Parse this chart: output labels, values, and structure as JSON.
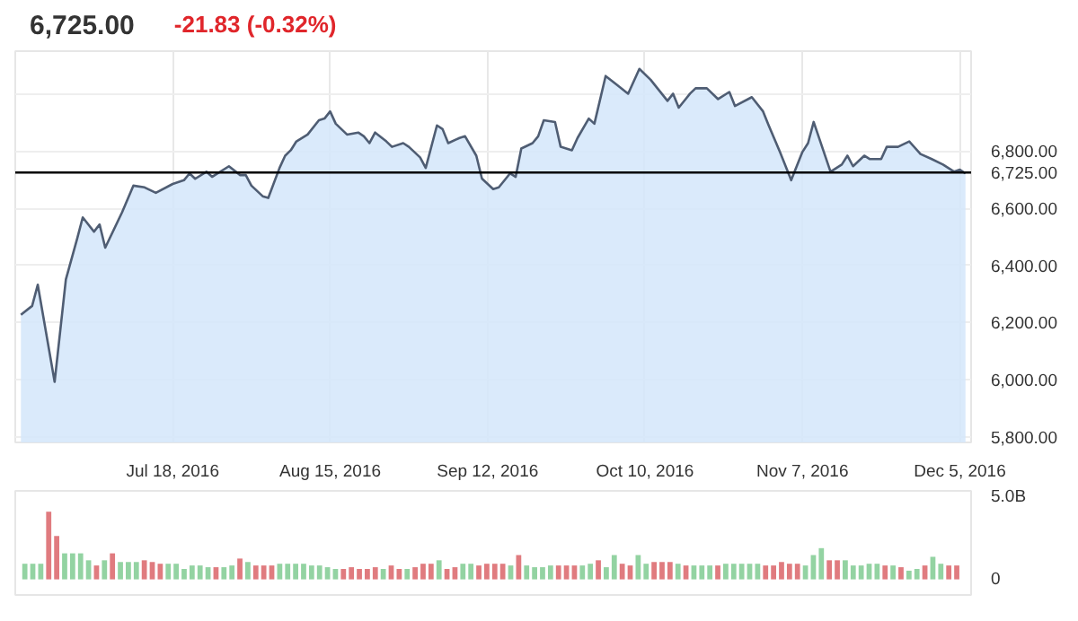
{
  "chart_data": [
    {
      "type": "area",
      "title": "6,725.00",
      "subtitle": "-21.83 (-0.32%)",
      "x": [
        "2016-06-21",
        "2016-06-23",
        "2016-06-24",
        "2016-06-27",
        "2016-06-29",
        "2016-07-01",
        "2016-07-02",
        "2016-07-04",
        "2016-07-05",
        "2016-07-06",
        "2016-07-09",
        "2016-07-11",
        "2016-07-13",
        "2016-07-15",
        "2016-07-18",
        "2016-07-20",
        "2016-07-21",
        "2016-07-22",
        "2016-07-24",
        "2016-07-25",
        "2016-07-26",
        "2016-07-28",
        "2016-07-30",
        "2016-07-31",
        "2016-08-01",
        "2016-08-03",
        "2016-08-04",
        "2016-08-06",
        "2016-08-07",
        "2016-08-08",
        "2016-08-09",
        "2016-08-11",
        "2016-08-13",
        "2016-08-14",
        "2016-08-15",
        "2016-08-16",
        "2016-08-18",
        "2016-08-20",
        "2016-08-21",
        "2016-08-22",
        "2016-08-23",
        "2016-08-25",
        "2016-08-26",
        "2016-08-28",
        "2016-08-29",
        "2016-08-31",
        "2016-09-01",
        "2016-09-03",
        "2016-09-04",
        "2016-09-05",
        "2016-09-07",
        "2016-09-08",
        "2016-09-10",
        "2016-09-11",
        "2016-09-13",
        "2016-09-14",
        "2016-09-16",
        "2016-09-17",
        "2016-09-18",
        "2016-09-20",
        "2016-09-21",
        "2016-09-22",
        "2016-09-24",
        "2016-09-25",
        "2016-09-27",
        "2016-09-28",
        "2016-09-30",
        "2016-10-01",
        "2016-10-03",
        "2016-10-05",
        "2016-10-07",
        "2016-10-09",
        "2016-10-11",
        "2016-10-14",
        "2016-10-15",
        "2016-10-16",
        "2016-10-18",
        "2016-10-19",
        "2016-10-21",
        "2016-10-23",
        "2016-10-25",
        "2016-10-26",
        "2016-10-29",
        "2016-10-31",
        "2016-11-01",
        "2016-11-03",
        "2016-11-05",
        "2016-11-07",
        "2016-11-08",
        "2016-11-09",
        "2016-11-12",
        "2016-11-14",
        "2016-11-15",
        "2016-11-16",
        "2016-11-18",
        "2016-11-19",
        "2016-11-21",
        "2016-11-22",
        "2016-11-24",
        "2016-11-26",
        "2016-11-28",
        "2016-11-30",
        "2016-12-02",
        "2016-12-04",
        "2016-12-05",
        "2016-12-06"
      ],
      "series": [
        {
          "color": "#d3e6fa",
          "values": [
            6227,
            6258,
            6332,
            5992,
            6351,
            6493,
            6568,
            6518,
            6543,
            6462,
            6586,
            6679,
            6673,
            6654,
            6685,
            6698,
            6722,
            6703,
            6728,
            6710,
            6722,
            6747,
            6716,
            6716,
            6679,
            6642,
            6636,
            6741,
            6784,
            6803,
            6834,
            6858,
            6908,
            6914,
            6939,
            6896,
            6858,
            6865,
            6852,
            6828,
            6865,
            6834,
            6815,
            6828,
            6815,
            6778,
            6741,
            6890,
            6877,
            6828,
            6846,
            6852,
            6784,
            6704,
            6667,
            6673,
            6722,
            6710,
            6809,
            6828,
            6852,
            6908,
            6902,
            6815,
            6803,
            6846,
            6914,
            6896,
            7063,
            7032,
            7001,
            7088,
            7050,
            6976,
            7001,
            6952,
            7001,
            7020,
            7020,
            6982,
            7007,
            6958,
            6989,
            6939,
            6890,
            6797,
            6698,
            6797,
            6828,
            6902,
            6728,
            6753,
            6784,
            6747,
            6784,
            6772,
            6772,
            6815,
            6815,
            6834,
            6790,
            6772,
            6753,
            6728,
            6735,
            6722
          ]
        }
      ],
      "xlim": [
        "2016-06-20",
        "2016-12-07"
      ],
      "xticks": [
        {
          "value": "2016-07-18",
          "label": "Jul 18, 2016"
        },
        {
          "value": "2016-08-15",
          "label": "Aug 15, 2016"
        },
        {
          "value": "2016-09-12",
          "label": "Sep 12, 2016"
        },
        {
          "value": "2016-10-10",
          "label": "Oct 10, 2016"
        },
        {
          "value": "2016-11-07",
          "label": "Nov 7, 2016"
        },
        {
          "value": "2016-12-05",
          "label": "Dec 5, 2016"
        }
      ],
      "ylim": [
        5780,
        7150
      ],
      "yticks": [
        {
          "value": 5800,
          "label": "5,800.00"
        },
        {
          "value": 6000,
          "label": "6,000.00"
        },
        {
          "value": 6200,
          "label": "6,200.00"
        },
        {
          "value": 6400,
          "label": "6,400.00"
        },
        {
          "value": 6600,
          "label": "6,600.00"
        },
        {
          "value": 6800,
          "label": "6,800.00"
        },
        {
          "value": 7000,
          "label": null
        }
      ],
      "grid": true,
      "ref_lines": [
        {
          "axis": "y",
          "value": 6725,
          "label": "6,725.00",
          "color": "#000000"
        }
      ]
    },
    {
      "type": "bar",
      "categories": [
        null,
        null,
        null,
        null,
        null,
        null,
        null,
        null,
        null,
        null,
        null,
        null,
        null,
        null,
        null,
        null,
        null,
        null,
        null,
        null,
        null,
        null,
        null,
        null,
        null,
        null,
        null,
        null,
        null,
        null,
        null,
        null,
        null,
        null,
        null,
        null,
        null,
        null,
        null,
        null,
        null,
        null,
        null,
        null,
        null,
        null,
        null,
        null,
        null,
        null,
        null,
        null,
        null,
        null,
        null,
        null,
        null,
        null,
        null,
        null,
        null,
        null,
        null,
        null,
        null,
        null,
        null,
        null,
        null,
        null,
        null,
        null,
        null,
        null,
        null,
        null,
        null,
        null,
        null,
        null,
        null,
        null,
        null,
        null,
        null,
        null,
        null,
        null,
        null,
        null,
        null,
        null,
        null,
        null,
        null,
        null,
        null,
        null,
        null,
        null,
        null,
        null,
        null,
        null,
        null,
        null,
        null,
        null,
        null,
        null,
        null,
        null,
        null,
        null,
        null,
        null,
        null,
        null
      ],
      "values": [
        0.9,
        0.9,
        0.9,
        3.9,
        2.5,
        1.5,
        1.5,
        1.5,
        1.1,
        0.8,
        1.1,
        1.5,
        1.0,
        1.0,
        1.0,
        1.1,
        1.0,
        0.9,
        0.9,
        0.9,
        0.6,
        0.8,
        0.8,
        0.7,
        0.7,
        0.7,
        0.8,
        1.2,
        1.0,
        0.8,
        0.8,
        0.8,
        0.9,
        0.9,
        0.9,
        0.9,
        0.8,
        0.8,
        0.7,
        0.6,
        0.6,
        0.7,
        0.6,
        0.6,
        0.7,
        0.6,
        0.8,
        0.6,
        0.6,
        0.7,
        0.9,
        0.9,
        1.1,
        0.6,
        0.7,
        0.9,
        0.9,
        0.8,
        0.9,
        0.9,
        0.9,
        0.8,
        1.4,
        0.8,
        0.7,
        0.7,
        0.8,
        0.8,
        0.8,
        0.8,
        0.8,
        0.9,
        1.1,
        0.7,
        1.4,
        0.9,
        0.8,
        1.4,
        0.9,
        1.0,
        1.0,
        1.0,
        0.9,
        0.8,
        0.8,
        0.8,
        0.8,
        0.8,
        0.9,
        0.9,
        0.9,
        0.9,
        0.9,
        0.8,
        0.8,
        1.0,
        0.9,
        0.9,
        0.8,
        1.4,
        1.8,
        1.1,
        1.1,
        1.1,
        0.8,
        0.8,
        0.9,
        0.9,
        0.8,
        0.8,
        0.7,
        0.5,
        0.6,
        0.8,
        1.3,
        0.9,
        0.8,
        0.8
      ],
      "colors": [
        "#93d3a2",
        "#93d3a2",
        "#93d3a2",
        "#e07b7f",
        "#e07b7f",
        "#93d3a2",
        "#93d3a2",
        "#93d3a2",
        "#93d3a2",
        "#e07b7f",
        "#93d3a2",
        "#e07b7f",
        "#93d3a2",
        "#93d3a2",
        "#93d3a2",
        "#e07b7f",
        "#e07b7f",
        "#e07b7f",
        "#93d3a2",
        "#93d3a2",
        "#93d3a2",
        "#93d3a2",
        "#93d3a2",
        "#93d3a2",
        "#e07b7f",
        "#93d3a2",
        "#93d3a2",
        "#e07b7f",
        "#93d3a2",
        "#e07b7f",
        "#e07b7f",
        "#e07b7f",
        "#93d3a2",
        "#93d3a2",
        "#93d3a2",
        "#93d3a2",
        "#93d3a2",
        "#93d3a2",
        "#93d3a2",
        "#93d3a2",
        "#e07b7f",
        "#e07b7f",
        "#e07b7f",
        "#e07b7f",
        "#e07b7f",
        "#93d3a2",
        "#e07b7f",
        "#e07b7f",
        "#93d3a2",
        "#e07b7f",
        "#e07b7f",
        "#e07b7f",
        "#93d3a2",
        "#e07b7f",
        "#e07b7f",
        "#93d3a2",
        "#93d3a2",
        "#e07b7f",
        "#e07b7f",
        "#e07b7f",
        "#e07b7f",
        "#93d3a2",
        "#e07b7f",
        "#93d3a2",
        "#93d3a2",
        "#93d3a2",
        "#93d3a2",
        "#e07b7f",
        "#e07b7f",
        "#e07b7f",
        "#93d3a2",
        "#93d3a2",
        "#e07b7f",
        "#93d3a2",
        "#93d3a2",
        "#e07b7f",
        "#e07b7f",
        "#93d3a2",
        "#93d3a2",
        "#e07b7f",
        "#e07b7f",
        "#e07b7f",
        "#93d3a2",
        "#e07b7f",
        "#93d3a2",
        "#93d3a2",
        "#93d3a2",
        "#e07b7f",
        "#93d3a2",
        "#93d3a2",
        "#93d3a2",
        "#93d3a2",
        "#93d3a2",
        "#e07b7f",
        "#e07b7f",
        "#e07b7f",
        "#e07b7f",
        "#e07b7f",
        "#93d3a2",
        "#93d3a2",
        "#93d3a2",
        "#e07b7f",
        "#e07b7f",
        "#93d3a2",
        "#93d3a2",
        "#93d3a2",
        "#93d3a2",
        "#93d3a2",
        "#e07b7f",
        "#93d3a2",
        "#e07b7f",
        "#93d3a2",
        "#93d3a2",
        "#e07b7f",
        "#93d3a2",
        "#93d3a2",
        "#e07b7f",
        "#e07b7f"
      ],
      "ylim": [
        -0.9,
        5.1
      ],
      "yticks": [
        0,
        {
          "value": 5,
          "label": "5.0B"
        }
      ],
      "tick_labels": "y"
    }
  ]
}
